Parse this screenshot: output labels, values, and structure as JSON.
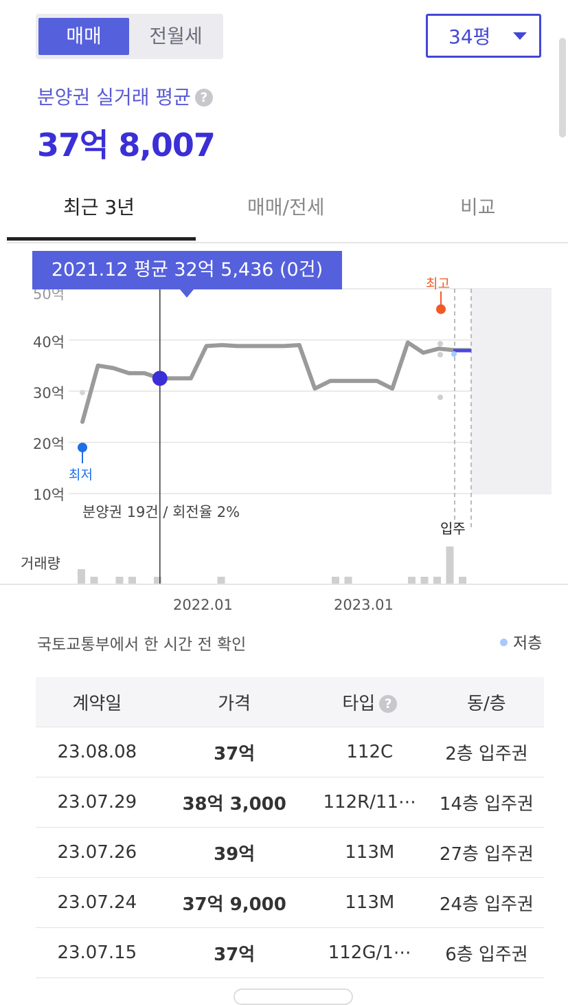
{
  "toggle": {
    "sale_label": "매매",
    "rent_label": "전월세"
  },
  "area_select": {
    "value": "34평"
  },
  "subtitle": "분양권 실거래 평균",
  "average_price": "37억 8,007",
  "help_icon_glyph": "?",
  "tabs": [
    {
      "label": "최근 3년",
      "active": true
    },
    {
      "label": "매매/전세",
      "active": false
    },
    {
      "label": "비교",
      "active": false
    }
  ],
  "tooltip": "2021.12 평균 32억 5,436 (0건)",
  "chart_data": {
    "type": "line",
    "title": "",
    "xlabel": "",
    "ylabel": "",
    "ylim": [
      10,
      50
    ],
    "y_unit": "억",
    "y_ticks": [
      "10억",
      "20억",
      "30억",
      "40억",
      "50억"
    ],
    "x_ticks": [
      "2022.01",
      "2023.01"
    ],
    "grid": true,
    "series": [
      {
        "x": [
          "2021.07",
          "2021.08",
          "2021.09",
          "2021.10",
          "2021.11",
          "2021.12",
          "2022.01",
          "2022.02",
          "2022.03",
          "2022.04",
          "2022.05",
          "2022.06",
          "2022.07",
          "2022.08",
          "2022.09",
          "2022.10",
          "2022.11",
          "2022.12",
          "2023.01",
          "2023.02",
          "2023.03",
          "2023.04",
          "2023.05",
          "2023.06",
          "2023.07",
          "2023.08"
        ],
        "values": [
          24.0,
          35.0,
          34.5,
          33.5,
          33.5,
          32.5,
          32.5,
          32.5,
          38.8,
          39.0,
          38.8,
          38.8,
          38.8,
          38.8,
          39.0,
          30.5,
          32.0,
          32.0,
          32.0,
          32.0,
          30.5,
          39.5,
          37.5,
          38.3,
          38.0,
          38.0
        ]
      }
    ],
    "highlight": {
      "x": "2021.12",
      "value": 32.5
    },
    "max_marker": {
      "label": "최고",
      "value": 46.0
    },
    "min_marker": {
      "label": "최저",
      "value": 19.0
    },
    "move_in_label": "입주",
    "presale_note": "분양권 19건 / 회전율 2%",
    "volume_label": "거래량",
    "volume": [
      2,
      1,
      0,
      1,
      1,
      0,
      1,
      0,
      0,
      0,
      0,
      1,
      0,
      0,
      0,
      0,
      0,
      0,
      0,
      0,
      1,
      1,
      0,
      0,
      0,
      0,
      1,
      1,
      1,
      5,
      1
    ]
  },
  "source_note": "국토교통부에서 한 시간 전 확인",
  "legend_low_floor": "저층",
  "colors": {
    "accent": "#5560dc",
    "max": "#f05a28",
    "min": "#1f6fe6",
    "line": "#9a9a9a"
  },
  "table": {
    "headers": [
      "계약일",
      "가격",
      "타입",
      "동/층"
    ],
    "rows": [
      [
        "23.08.08",
        "37억",
        "112C",
        "2층 입주권"
      ],
      [
        "23.07.29",
        "38억 3,000",
        "112R/11⋯",
        "14층 입주권"
      ],
      [
        "23.07.26",
        "39억",
        "113M",
        "27층 입주권"
      ],
      [
        "23.07.24",
        "37억 9,000",
        "113M",
        "24층 입주권"
      ],
      [
        "23.07.15",
        "37억",
        "112G/1⋯",
        "6층 입주권"
      ]
    ]
  }
}
